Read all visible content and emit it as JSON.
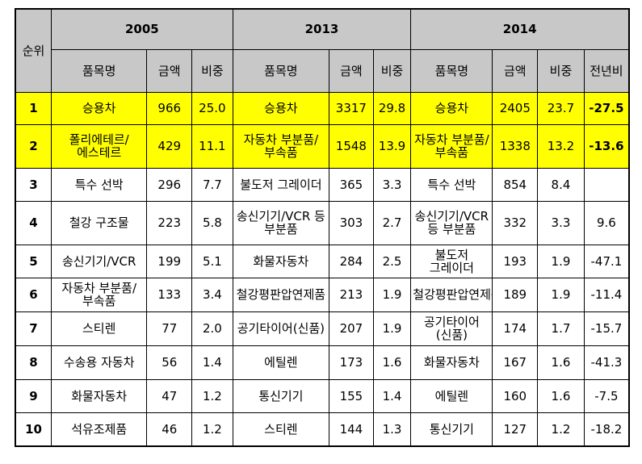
{
  "header": {
    "rank": "순위",
    "years": [
      "2005",
      "2013",
      "2014"
    ],
    "item": "품목명",
    "amount": "금액",
    "share": "비중",
    "yoy": "전년비"
  },
  "rows": [
    {
      "rank": "1",
      "i05": "승용차",
      "a05": "966",
      "s05": "25.0",
      "i13": "승용차",
      "a13": "3317",
      "s13": "29.8",
      "i14": "승용차",
      "a14": "2405",
      "s14": "23.7",
      "y14": "-27.5"
    },
    {
      "rank": "2",
      "i05": "폴리에테르/에스테르",
      "a05": "429",
      "s05": "11.1",
      "i13": "자동차 부분품/부속품",
      "a13": "1548",
      "s13": "13.9",
      "i14": "자동차 부분품/부속품",
      "a14": "1338",
      "s14": "13.2",
      "y14": "-13.6"
    },
    {
      "rank": "3",
      "i05": "특수 선박",
      "a05": "296",
      "s05": "7.7",
      "i13": "불도저 그레이더",
      "a13": "365",
      "s13": "3.3",
      "i14": "특수 선박",
      "a14": "854",
      "s14": "8.4",
      "y14": ""
    },
    {
      "rank": "4",
      "i05": "철강 구조물",
      "a05": "223",
      "s05": "5.8",
      "i13": "송신기기/VCR 등 부분품",
      "a13": "303",
      "s13": "2.7",
      "i14": "송신기기/VCR 등 부분품",
      "a14": "332",
      "s14": "3.3",
      "y14": "9.6"
    },
    {
      "rank": "5",
      "i05": "송신기기/VCR",
      "a05": "199",
      "s05": "5.1",
      "i13": "화물자동차",
      "a13": "284",
      "s13": "2.5",
      "i14": "불도저 그레이더",
      "a14": "193",
      "s14": "1.9",
      "y14": "-47.1"
    },
    {
      "rank": "6",
      "i05": "자동차 부분품/부속품",
      "a05": "133",
      "s05": "3.4",
      "i13": "철강평판압연제품",
      "a13": "213",
      "s13": "1.9",
      "i14": "철강평판압연제품",
      "a14": "189",
      "s14": "1.9",
      "y14": "-11.4"
    },
    {
      "rank": "7",
      "i05": "스티렌",
      "a05": "77",
      "s05": "2.0",
      "i13": "공기타이어(신품)",
      "a13": "207",
      "s13": "1.9",
      "i14": "공기타이어(신품)",
      "a14": "174",
      "s14": "1.7",
      "y14": "-15.7"
    },
    {
      "rank": "8",
      "i05": "수송용 자동차",
      "a05": "56",
      "s05": "1.4",
      "i13": "에틸렌",
      "a13": "173",
      "s13": "1.6",
      "i14": "화물자동차",
      "a14": "167",
      "s14": "1.6",
      "y14": "-41.3"
    },
    {
      "rank": "9",
      "i05": "화물자동차",
      "a05": "47",
      "s05": "1.2",
      "i13": "통신기기",
      "a13": "155",
      "s13": "1.4",
      "i14": "에틸렌",
      "a14": "160",
      "s14": "1.6",
      "y14": "-7.5"
    },
    {
      "rank": "10",
      "i05": "석유조제품",
      "a05": "46",
      "s05": "1.2",
      "i13": "스티렌",
      "a13": "144",
      "s13": "1.3",
      "i14": "통신기기",
      "a14": "127",
      "s14": "1.2",
      "y14": "-18.2"
    }
  ]
}
